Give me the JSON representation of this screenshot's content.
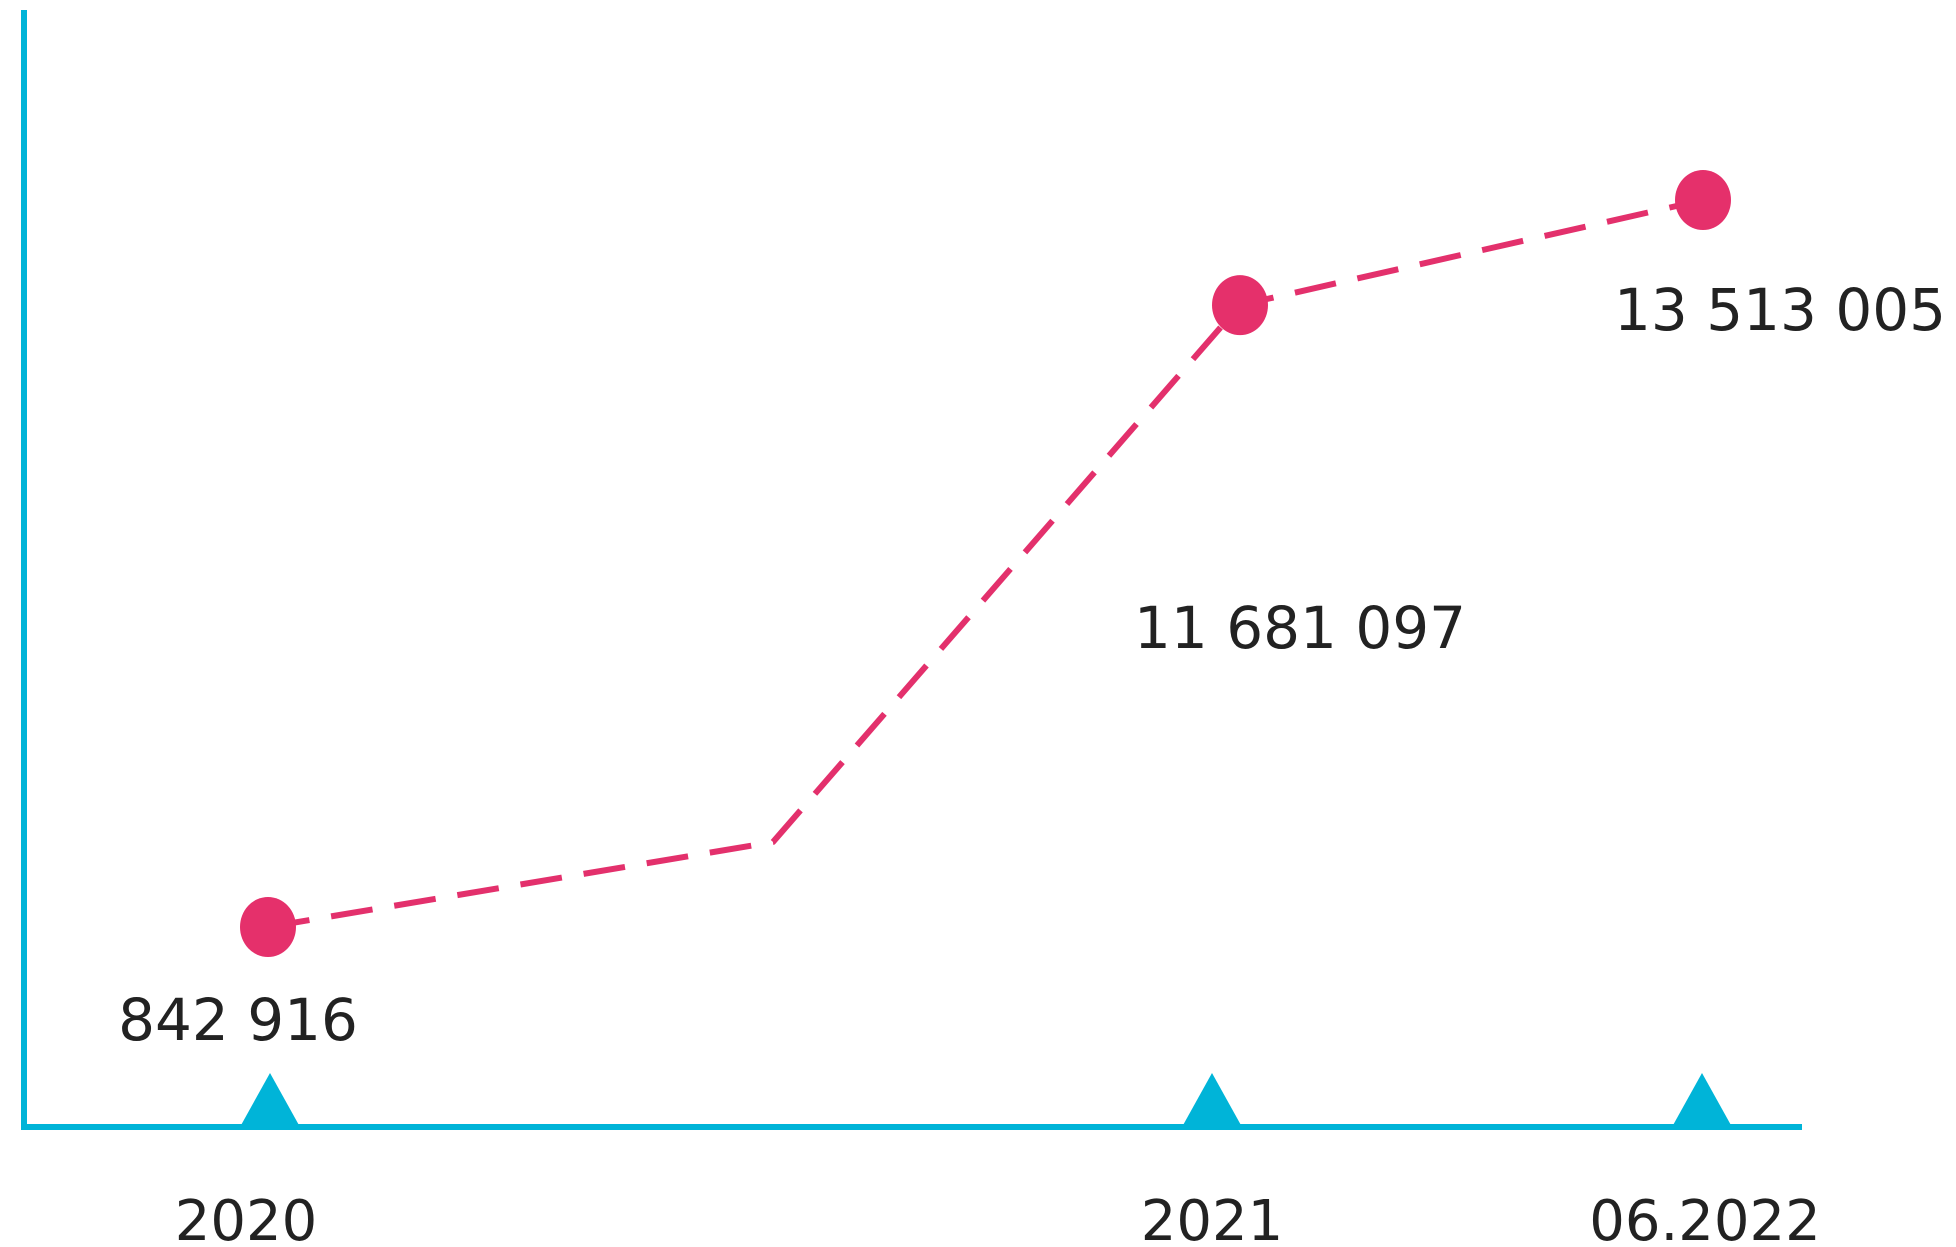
{
  "chart_data": {
    "type": "line",
    "categories": [
      "2020",
      "2021",
      "06.2022"
    ],
    "series": [
      {
        "values": [
          842916,
          11681097,
          13513005
        ],
        "data_labels": [
          "842 916",
          "11 681 097",
          "13 513 005"
        ]
      }
    ],
    "title": "",
    "xlabel": "",
    "ylabel": "",
    "grid": false,
    "legend": "none",
    "line_style": "dashed",
    "colors": {
      "axis": "#00b4d8",
      "line": "#e3306c",
      "marker": "#e5306b",
      "text": "#222222"
    }
  }
}
